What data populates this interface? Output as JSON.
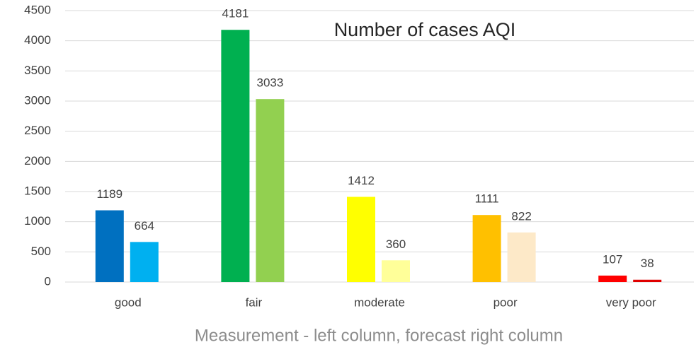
{
  "chart_data": {
    "type": "bar",
    "title": "Number of cases AQI",
    "x_label": "Measurement  - left column, forecast right column",
    "categories": [
      "good",
      "fair",
      "moderate",
      "poor",
      "very poor"
    ],
    "series": [
      {
        "colors": [
          "#0070c0",
          "#00b050",
          "#ffff00",
          "#ffc000",
          "#ff0000"
        ],
        "values": [
          1189,
          4181,
          1412,
          1111,
          107
        ]
      },
      {
        "colors": [
          "#00b0f0",
          "#92d050",
          "#ffff99",
          "#fde9c8",
          "#e00000"
        ],
        "values": [
          664,
          3033,
          360,
          822,
          38
        ]
      }
    ],
    "ylim": [
      0,
      4500
    ],
    "yticks": [
      0,
      500,
      1000,
      1500,
      2000,
      2500,
      3000,
      3500,
      4000,
      4500
    ],
    "grid": true
  }
}
